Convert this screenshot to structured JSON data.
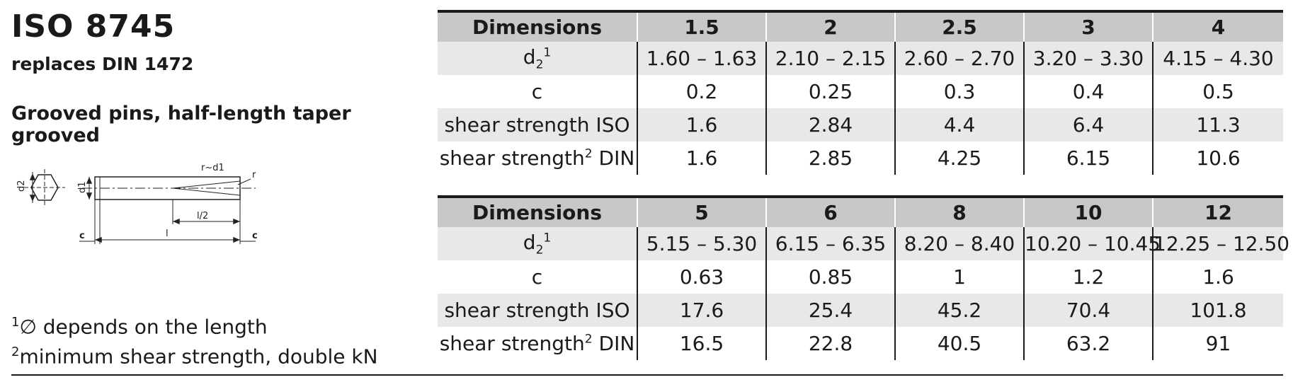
{
  "title": "ISO 8745",
  "subtitle": "replaces DIN 1472",
  "heading": "Grooved pins, half-length taper grooved",
  "drawing": {
    "label_d2": "d2",
    "label_d1": "d1",
    "label_r_d1": "r~d1",
    "label_r": "r",
    "label_l2": "l/2",
    "label_l": "l",
    "label_c_left": "c",
    "label_c_right": "c"
  },
  "notes": {
    "note1_mark": "1",
    "note1_text": "∅ depends on the length",
    "note2_mark": "2",
    "note2_text": "minimum shear strength, double kN"
  },
  "table1": {
    "header_label": "Dimensions",
    "sizes": [
      "1.5",
      "2",
      "2.5",
      "3",
      "4"
    ],
    "d2_label": "d",
    "d2_sub": "2",
    "d2_sup": "1",
    "d2_values": [
      "1.60 – 1.63",
      "2.10 – 2.15",
      "2.60 – 2.70",
      "3.20 – 3.30",
      "4.15 – 4.30"
    ],
    "c_label": "c",
    "c_values": [
      "0.2",
      "0.25",
      "0.3",
      "0.4",
      "0.5"
    ],
    "iso_label": "shear strength ISO",
    "iso_values": [
      "1.6",
      "2.84",
      "4.4",
      "6.4",
      "11.3"
    ],
    "din_label_pre": "shear strength",
    "din_label_sup": "2",
    "din_label_post": " DIN",
    "din_values": [
      "1.6",
      "2.85",
      "4.25",
      "6.15",
      "10.6"
    ]
  },
  "table2": {
    "header_label": "Dimensions",
    "sizes": [
      "5",
      "6",
      "8",
      "10",
      "12"
    ],
    "d2_label": "d",
    "d2_sub": "2",
    "d2_sup": "1",
    "d2_values": [
      "5.15 – 5.30",
      "6.15 – 6.35",
      "8.20 – 8.40",
      "10.20 – 10.45",
      "12.25 – 12.50"
    ],
    "c_label": "c",
    "c_values": [
      "0.63",
      "0.85",
      "1",
      "1.2",
      "1.6"
    ],
    "iso_label": "shear strength ISO",
    "iso_values": [
      "17.6",
      "25.4",
      "45.2",
      "70.4",
      "101.8"
    ],
    "din_label_pre": "shear strength",
    "din_label_sup": "2",
    "din_label_post": " DIN",
    "din_values": [
      "16.5",
      "22.8",
      "40.5",
      "63.2",
      "91"
    ]
  }
}
